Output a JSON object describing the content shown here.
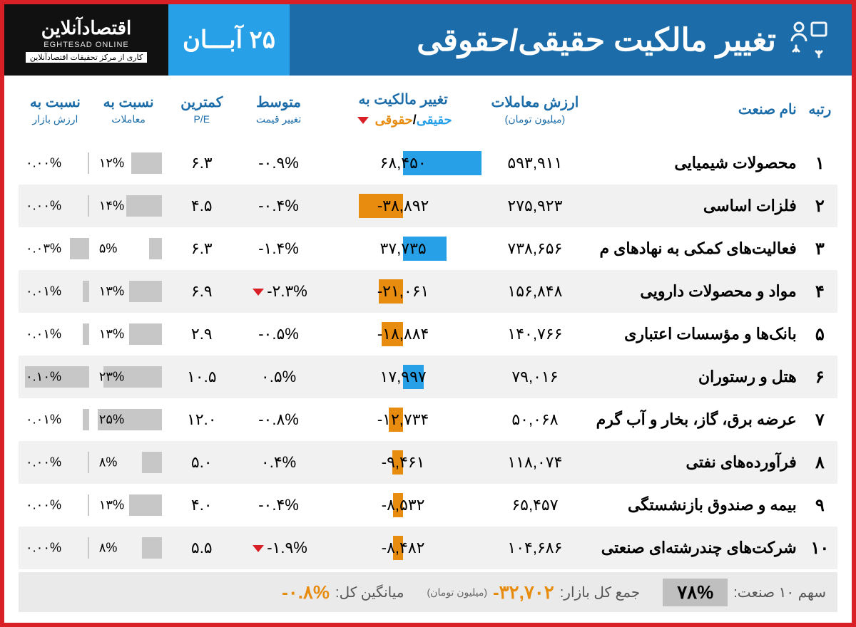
{
  "header": {
    "title": "تغییر مالکیت حقیقی/حقوقی",
    "date": "۲۵ آبـــان",
    "logo_main": "اقتصادآنلاین",
    "logo_sub": "EGHTESAD ONLINE",
    "logo_tag": "کاری از مرکز تحقیقات اقتصادآنلاین"
  },
  "columns": {
    "rank": "رتبه",
    "name": "نام صنعت",
    "trade_value": "ارزش معاملات",
    "trade_value_sub": "(میلیون تومان)",
    "ownership": "تغییر مالکیت به",
    "ownership_sub_real": "حقیقی",
    "ownership_sub_legal": "حقوقی",
    "avg_change": "متوسط",
    "avg_change_sub": "تغییر قیمت",
    "min_pe": "کمترین",
    "min_pe_sub": "P/E",
    "ratio_trades": "نسبت به",
    "ratio_trades_sub": "معاملات",
    "ratio_market": "نسبت به",
    "ratio_market_sub": "ارزش بازار"
  },
  "colors": {
    "real_bar": "#27a0e8",
    "legal_bar": "#e78c0f",
    "ratio_bar": "#c7c7c7",
    "header_bg": "#1b6ca8",
    "date_bg": "#27a0e8",
    "border": "#d92027",
    "alt_row": "#f1f1f1"
  },
  "chart": {
    "ownership_max_abs": 68450,
    "ratio_trades_max": 25,
    "ratio_market_max": 0.1
  },
  "rows": [
    {
      "rank": "۱",
      "name": "محصولات شیمیایی",
      "trade_value": "۵۹۳,۹۱۱",
      "own_val": 68450,
      "own_lbl": "۶۸,۴۵۰",
      "avg": "-۰.۹%",
      "tri": false,
      "pe": "۶.۳",
      "r_trades": 12,
      "r_trades_lbl": "۱۲%",
      "r_market": 0.0,
      "r_market_lbl": "۰.۰۰%"
    },
    {
      "rank": "۲",
      "name": "فلزات اساسی",
      "trade_value": "۲۷۵,۹۲۳",
      "own_val": -38892,
      "own_lbl": "-۳۸,۸۹۲",
      "avg": "-۰.۴%",
      "tri": false,
      "pe": "۴.۵",
      "r_trades": 14,
      "r_trades_lbl": "۱۴%",
      "r_market": 0.0,
      "r_market_lbl": "۰.۰۰%"
    },
    {
      "rank": "۳",
      "name": "فعالیت‌های کمکی به نهادهای م",
      "trade_value": "۷۳۸,۶۵۶",
      "own_val": 37735,
      "own_lbl": "۳۷,۷۳۵",
      "avg": "-۱.۴%",
      "tri": false,
      "pe": "۶.۳",
      "r_trades": 5,
      "r_trades_lbl": "۵%",
      "r_market": 0.03,
      "r_market_lbl": "۰.۰۳%"
    },
    {
      "rank": "۴",
      "name": "مواد و محصولات دارویی",
      "trade_value": "۱۵۶,۸۴۸",
      "own_val": -21061,
      "own_lbl": "-۲۱,۰۶۱",
      "avg": "-۲.۳%",
      "tri": true,
      "pe": "۶.۹",
      "r_trades": 13,
      "r_trades_lbl": "۱۳%",
      "r_market": 0.01,
      "r_market_lbl": "۰.۰۱%"
    },
    {
      "rank": "۵",
      "name": "بانک‌ها و مؤسسات اعتباری",
      "trade_value": "۱۴۰,۷۶۶",
      "own_val": -18884,
      "own_lbl": "-۱۸,۸۸۴",
      "avg": "-۰.۵%",
      "tri": false,
      "pe": "۲.۹",
      "r_trades": 13,
      "r_trades_lbl": "۱۳%",
      "r_market": 0.01,
      "r_market_lbl": "۰.۰۱%"
    },
    {
      "rank": "۶",
      "name": "هتل و رستوران",
      "trade_value": "۷۹,۰۱۶",
      "own_val": 17997,
      "own_lbl": "۱۷,۹۹۷",
      "avg": "۰.۵%",
      "tri": false,
      "pe": "۱۰.۵",
      "r_trades": 23,
      "r_trades_lbl": "۲۳%",
      "r_market": 0.1,
      "r_market_lbl": "۰.۱۰%"
    },
    {
      "rank": "۷",
      "name": "عرضه برق، گاز، بخار و آب گرم",
      "trade_value": "۵۰,۰۶۸",
      "own_val": -12734,
      "own_lbl": "-۱۲,۷۳۴",
      "avg": "-۰.۸%",
      "tri": false,
      "pe": "۱۲.۰",
      "r_trades": 25,
      "r_trades_lbl": "۲۵%",
      "r_market": 0.01,
      "r_market_lbl": "۰.۰۱%"
    },
    {
      "rank": "۸",
      "name": "فرآورده‌های نفتی",
      "trade_value": "۱۱۸,۰۷۴",
      "own_val": -9461,
      "own_lbl": "-۹,۴۶۱",
      "avg": "۰.۴%",
      "tri": false,
      "pe": "۵.۰",
      "r_trades": 8,
      "r_trades_lbl": "۸%",
      "r_market": 0.0,
      "r_market_lbl": "۰.۰۰%"
    },
    {
      "rank": "۹",
      "name": "بیمه و صندوق بازنشستگی",
      "trade_value": "۶۵,۴۵۷",
      "own_val": -8532,
      "own_lbl": "-۸,۵۳۲",
      "avg": "-۰.۴%",
      "tri": false,
      "pe": "۴.۰",
      "r_trades": 13,
      "r_trades_lbl": "۱۳%",
      "r_market": 0.0,
      "r_market_lbl": "۰.۰۰%"
    },
    {
      "rank": "۱۰",
      "name": "شرکت‌های چندرشته‌ای صنعتی",
      "trade_value": "۱۰۴,۶۸۶",
      "own_val": -8482,
      "own_lbl": "-۸,۴۸۲",
      "avg": "-۱.۹%",
      "tri": true,
      "pe": "۵.۵",
      "r_trades": 8,
      "r_trades_lbl": "۸%",
      "r_market": 0.0,
      "r_market_lbl": "۰.۰۰%"
    }
  ],
  "footer": {
    "share_label": "سهم ۱۰ صنعت:",
    "share_value": "۷۸%",
    "total_label": "جمع کل بازار:",
    "total_value": "-۳۲,۷۰۲",
    "total_unit": "(میلیون تومان)",
    "avg_label": "میانگین کل:",
    "avg_value": "-۰.۸%"
  }
}
